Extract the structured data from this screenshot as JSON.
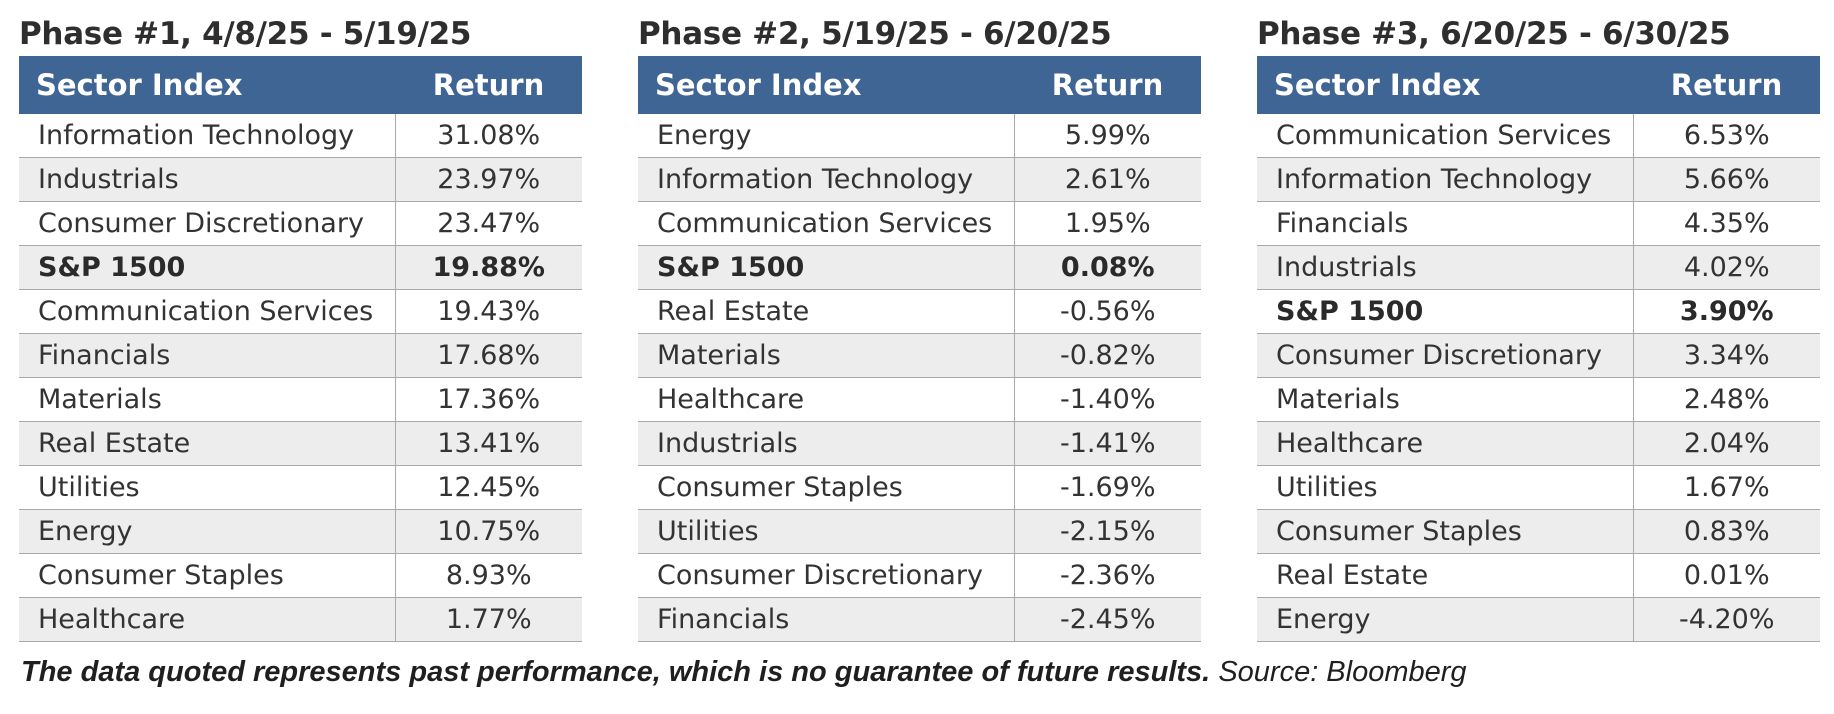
{
  "columns": {
    "sector_label": "Sector Index",
    "return_label": "Return"
  },
  "phases": [
    {
      "title": "Phase #1, 4/8/25 - 5/19/25",
      "rows": [
        {
          "sector": "Information Technology",
          "return": "31.08%",
          "bold": false
        },
        {
          "sector": "Industrials",
          "return": "23.97%",
          "bold": false
        },
        {
          "sector": "Consumer Discretionary",
          "return": "23.47%",
          "bold": false
        },
        {
          "sector": "S&P 1500",
          "return": "19.88%",
          "bold": true
        },
        {
          "sector": "Communication Services",
          "return": "19.43%",
          "bold": false
        },
        {
          "sector": "Financials",
          "return": "17.68%",
          "bold": false
        },
        {
          "sector": "Materials",
          "return": "17.36%",
          "bold": false
        },
        {
          "sector": "Real Estate",
          "return": "13.41%",
          "bold": false
        },
        {
          "sector": "Utilities",
          "return": "12.45%",
          "bold": false
        },
        {
          "sector": "Energy",
          "return": "10.75%",
          "bold": false
        },
        {
          "sector": "Consumer Staples",
          "return": "8.93%",
          "bold": false
        },
        {
          "sector": "Healthcare",
          "return": "1.77%",
          "bold": false
        }
      ]
    },
    {
      "title": "Phase #2, 5/19/25 - 6/20/25",
      "rows": [
        {
          "sector": "Energy",
          "return": "5.99%",
          "bold": false
        },
        {
          "sector": "Information Technology",
          "return": "2.61%",
          "bold": false
        },
        {
          "sector": "Communication Services",
          "return": "1.95%",
          "bold": false
        },
        {
          "sector": "S&P 1500",
          "return": "0.08%",
          "bold": true
        },
        {
          "sector": "Real Estate",
          "return": "-0.56%",
          "bold": false
        },
        {
          "sector": "Materials",
          "return": "-0.82%",
          "bold": false
        },
        {
          "sector": "Healthcare",
          "return": "-1.40%",
          "bold": false
        },
        {
          "sector": "Industrials",
          "return": "-1.41%",
          "bold": false
        },
        {
          "sector": "Consumer Staples",
          "return": "-1.69%",
          "bold": false
        },
        {
          "sector": "Utilities",
          "return": "-2.15%",
          "bold": false
        },
        {
          "sector": "Consumer Discretionary",
          "return": "-2.36%",
          "bold": false
        },
        {
          "sector": "Financials",
          "return": "-2.45%",
          "bold": false
        }
      ]
    },
    {
      "title": "Phase #3, 6/20/25 - 6/30/25",
      "rows": [
        {
          "sector": "Communication Services",
          "return": "6.53%",
          "bold": false
        },
        {
          "sector": "Information Technology",
          "return": "5.66%",
          "bold": false
        },
        {
          "sector": "Financials",
          "return": "4.35%",
          "bold": false
        },
        {
          "sector": "Industrials",
          "return": "4.02%",
          "bold": false
        },
        {
          "sector": "S&P 1500",
          "return": "3.90%",
          "bold": true
        },
        {
          "sector": "Consumer Discretionary",
          "return": "3.34%",
          "bold": false
        },
        {
          "sector": "Materials",
          "return": "2.48%",
          "bold": false
        },
        {
          "sector": "Healthcare",
          "return": "2.04%",
          "bold": false
        },
        {
          "sector": "Utilities",
          "return": "1.67%",
          "bold": false
        },
        {
          "sector": "Consumer Staples",
          "return": "0.83%",
          "bold": false
        },
        {
          "sector": "Real Estate",
          "return": "0.01%",
          "bold": false
        },
        {
          "sector": "Energy",
          "return": "-4.20%",
          "bold": false
        }
      ]
    }
  ],
  "footnote": {
    "disclaimer": "The data quoted represents past performance, which is no guarantee of future results.",
    "source": "Source: Bloomberg"
  },
  "colors": {
    "header_background": "#3f6595",
    "header_text": "#ffffff",
    "alt_row_background": "#ededed",
    "grid_line": "#a9a9a9"
  }
}
